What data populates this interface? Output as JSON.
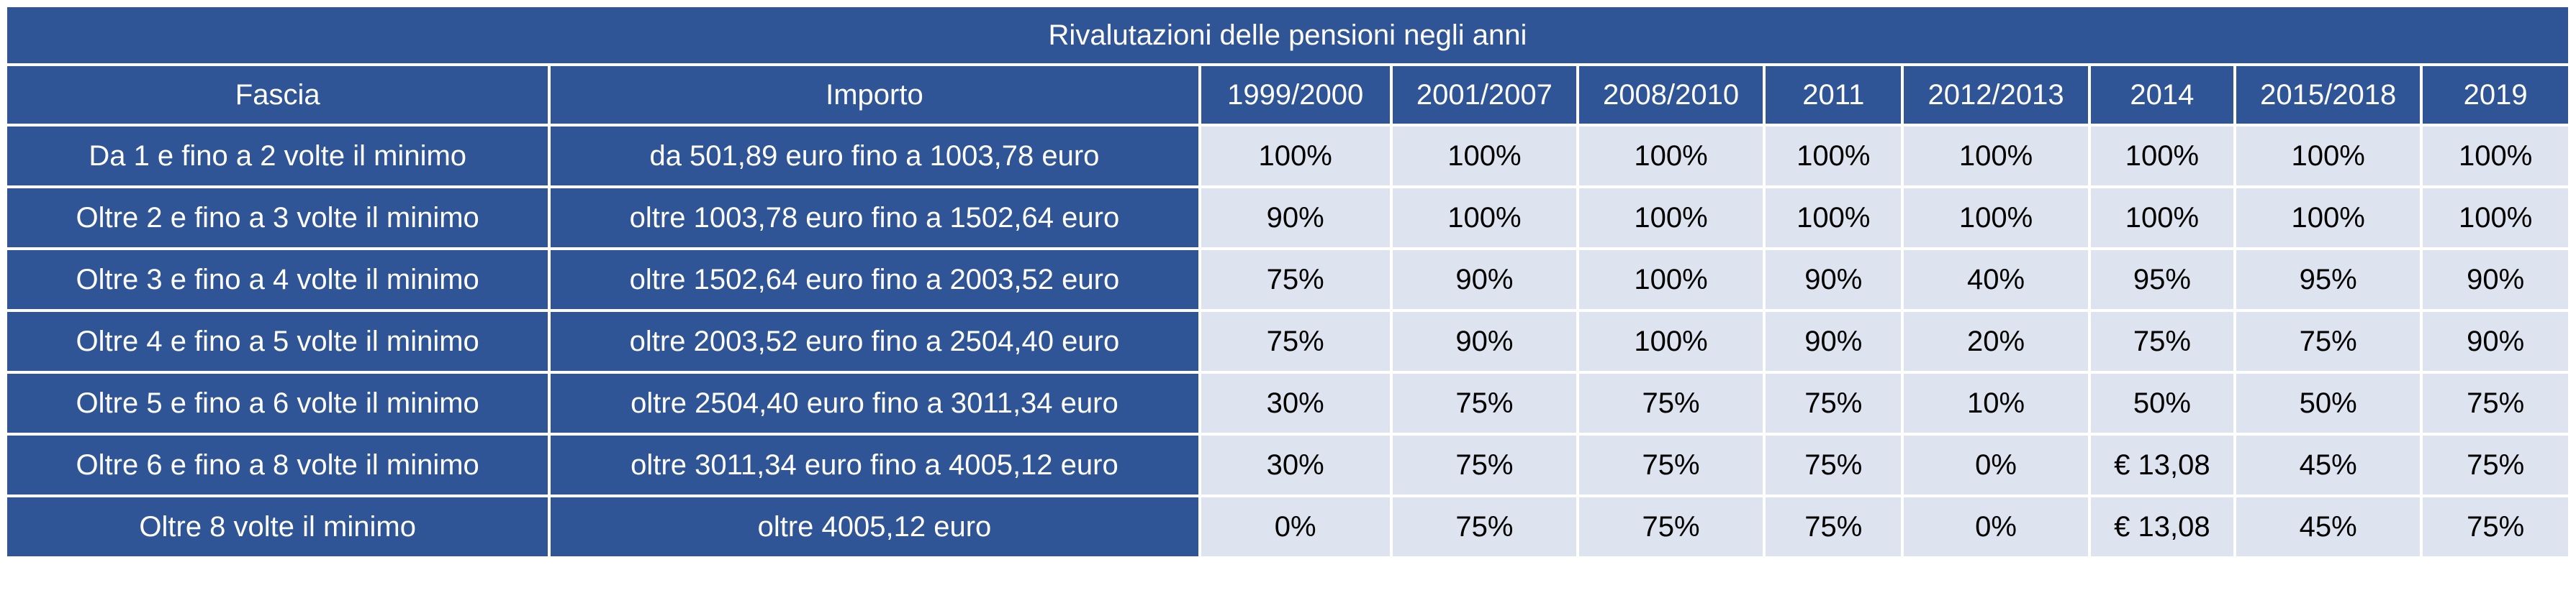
{
  "table": {
    "title": "Rivalutazioni delle pensioni negli anni",
    "headers": [
      "Fascia",
      "Importo",
      "1999/2000",
      "2001/2007",
      "2008/2010",
      "2011",
      "2012/2013",
      "2014",
      "2015/2018",
      "2019"
    ],
    "rows": [
      {
        "fascia": "Da 1 e fino a 2 volte il minimo",
        "importo": "da 501,89 euro fino a 1003,78 euro",
        "values": [
          "100%",
          "100%",
          "100%",
          "100%",
          "100%",
          "100%",
          "100%",
          "100%"
        ]
      },
      {
        "fascia": "Oltre 2 e fino a 3 volte il minimo",
        "importo": "oltre 1003,78 euro fino a 1502,64 euro",
        "values": [
          "90%",
          "100%",
          "100%",
          "100%",
          "100%",
          "100%",
          "100%",
          "100%"
        ]
      },
      {
        "fascia": "Oltre 3 e fino a 4 volte il minimo",
        "importo": "oltre 1502,64 euro fino a 2003,52 euro",
        "values": [
          "75%",
          "90%",
          "100%",
          "90%",
          "40%",
          "95%",
          "95%",
          "90%"
        ]
      },
      {
        "fascia": "Oltre 4 e fino a 5 volte il minimo",
        "importo": "oltre 2003,52 euro fino a 2504,40 euro",
        "values": [
          "75%",
          "90%",
          "100%",
          "90%",
          "20%",
          "75%",
          "75%",
          "90%"
        ]
      },
      {
        "fascia": "Oltre 5 e fino a 6 volte il minimo",
        "importo": "oltre 2504,40 euro fino a 3011,34 euro",
        "values": [
          "30%",
          "75%",
          "75%",
          "75%",
          "10%",
          "50%",
          "50%",
          "75%"
        ]
      },
      {
        "fascia": "Oltre 6 e fino a 8 volte il minimo",
        "importo": "oltre 3011,34 euro fino a 4005,12 euro",
        "values": [
          "30%",
          "75%",
          "75%",
          "75%",
          "0%",
          "€ 13,08",
          "45%",
          "75%"
        ]
      },
      {
        "fascia": "Oltre 8 volte il minimo",
        "importo": "oltre 4005,12 euro",
        "values": [
          "0%",
          "75%",
          "75%",
          "75%",
          "0%",
          "€ 13,08",
          "45%",
          "75%"
        ]
      }
    ]
  },
  "colors": {
    "header_blue": "#2f5597",
    "cell_light": "#dde4ef"
  }
}
